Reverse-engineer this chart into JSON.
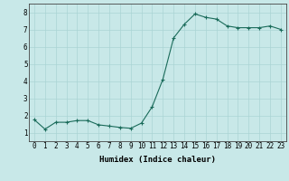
{
  "x": [
    0,
    1,
    2,
    3,
    4,
    5,
    6,
    7,
    8,
    9,
    10,
    11,
    12,
    13,
    14,
    15,
    16,
    17,
    18,
    19,
    20,
    21,
    22,
    23
  ],
  "y": [
    1.75,
    1.2,
    1.6,
    1.6,
    1.7,
    1.7,
    1.45,
    1.38,
    1.3,
    1.25,
    1.55,
    2.5,
    4.1,
    6.5,
    7.3,
    7.9,
    7.7,
    7.6,
    7.2,
    7.1,
    7.1,
    7.1,
    7.2,
    7.0
  ],
  "line_color": "#1a6b5a",
  "marker": "+",
  "marker_color": "#1a6b5a",
  "bg_color": "#c8e8e8",
  "grid_color": "#aad4d4",
  "xlabel": "Humidex (Indice chaleur)",
  "xlabel_fontsize": 6.5,
  "tick_fontsize": 5.5,
  "xlim": [
    -0.5,
    23.5
  ],
  "ylim": [
    0.5,
    8.5
  ],
  "yticks": [
    1,
    2,
    3,
    4,
    5,
    6,
    7,
    8
  ],
  "xticks": [
    0,
    1,
    2,
    3,
    4,
    5,
    6,
    7,
    8,
    9,
    10,
    11,
    12,
    13,
    14,
    15,
    16,
    17,
    18,
    19,
    20,
    21,
    22,
    23
  ],
  "xtick_labels": [
    "0",
    "1",
    "2",
    "3",
    "4",
    "5",
    "6",
    "7",
    "8",
    "9",
    "10",
    "11",
    "12",
    "13",
    "14",
    "15",
    "16",
    "17",
    "18",
    "19",
    "20",
    "21",
    "22",
    "23"
  ]
}
